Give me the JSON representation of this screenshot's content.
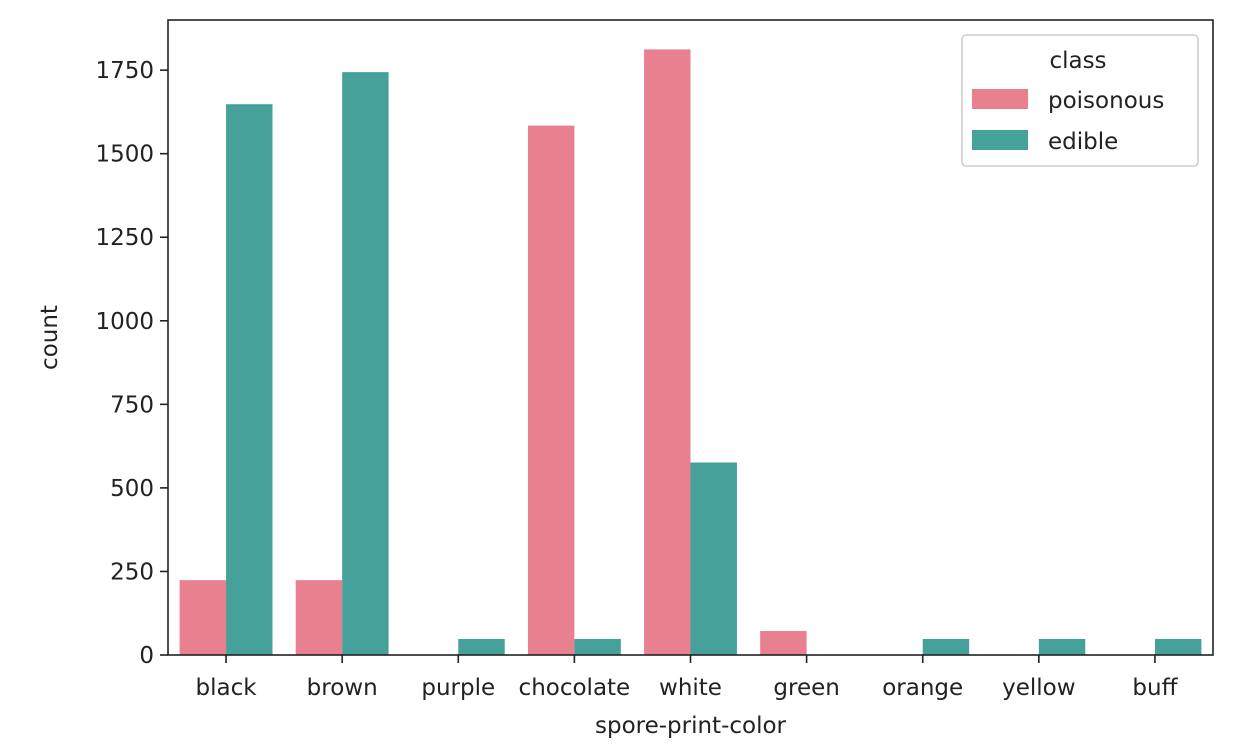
{
  "chart_data": {
    "type": "bar",
    "title": "",
    "xlabel": "spore-print-color",
    "ylabel": "count",
    "categories": [
      "black",
      "brown",
      "purple",
      "chocolate",
      "white",
      "green",
      "orange",
      "yellow",
      "buff"
    ],
    "series": [
      {
        "name": "poisonous",
        "color": "#e8808f",
        "values": [
          224,
          224,
          0,
          1584,
          1812,
          72,
          0,
          0,
          0
        ]
      },
      {
        "name": "edible",
        "color": "#45a19a",
        "values": [
          1648,
          1744,
          48,
          48,
          576,
          0,
          48,
          48,
          48
        ]
      }
    ],
    "ylim": [
      0,
      1900
    ],
    "yticks": [
      0,
      250,
      500,
      750,
      1000,
      1250,
      1500,
      1750
    ],
    "legend": {
      "title": "class",
      "position": "top-right"
    },
    "grid": false
  }
}
